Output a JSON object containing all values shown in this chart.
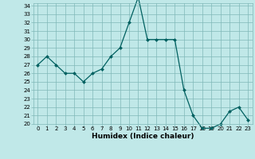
{
  "x": [
    0,
    1,
    2,
    3,
    4,
    5,
    6,
    7,
    8,
    9,
    10,
    11,
    12,
    13,
    14,
    15,
    16,
    17,
    18,
    19,
    20,
    21,
    22,
    23
  ],
  "y": [
    27,
    28,
    27,
    26,
    26,
    25,
    26,
    26.5,
    28,
    29,
    32,
    35,
    30,
    30,
    30,
    30,
    24,
    21,
    19.5,
    19.5,
    20,
    21.5,
    22,
    20.5
  ],
  "xlabel": "Humidex (Indice chaleur)",
  "ylim": [
    20,
    34
  ],
  "xlim": [
    -0.5,
    23.5
  ],
  "yticks": [
    20,
    21,
    22,
    23,
    24,
    25,
    26,
    27,
    28,
    29,
    30,
    31,
    32,
    33,
    34
  ],
  "xticks": [
    0,
    1,
    2,
    3,
    4,
    5,
    6,
    7,
    8,
    9,
    10,
    11,
    12,
    13,
    14,
    15,
    16,
    17,
    18,
    19,
    20,
    21,
    22,
    23
  ],
  "line_color": "#006060",
  "marker_color": "#006060",
  "bg_color": "#c0e8e8",
  "grid_color": "#80b8b8",
  "axes_bg": "#c0e8e8",
  "tick_label_fontsize": 5.0,
  "xlabel_fontsize": 6.5,
  "marker": "D",
  "marker_size": 2.0,
  "line_width": 0.9
}
